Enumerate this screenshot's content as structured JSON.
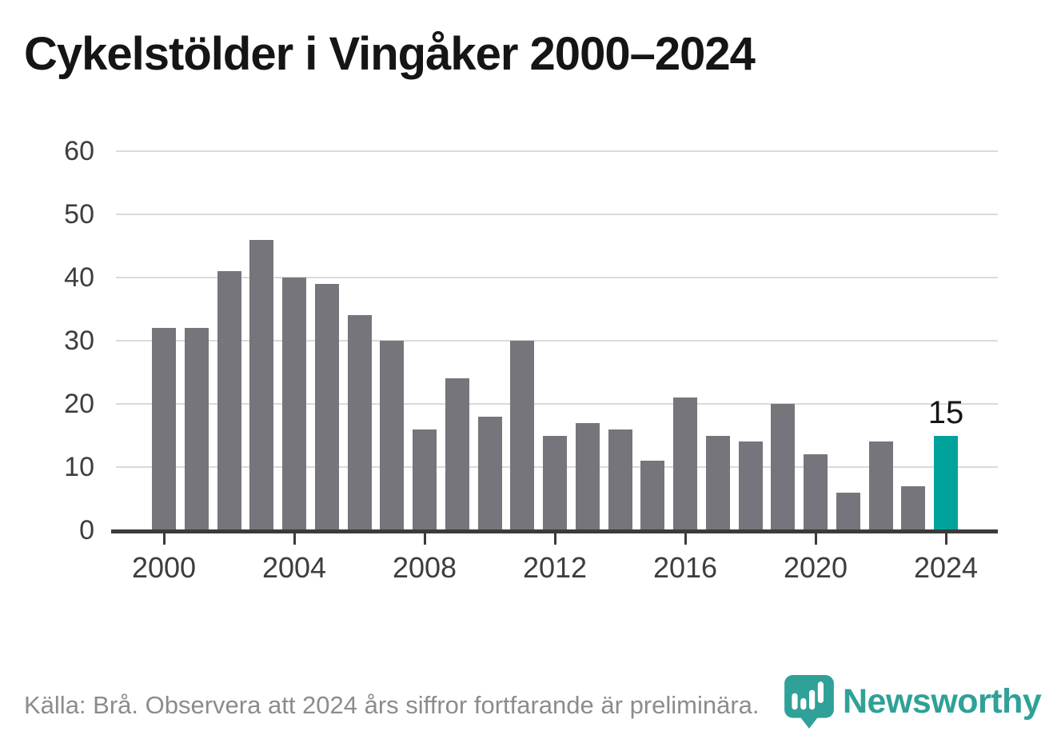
{
  "title": "Cykelstölder i Vingåker 2000–2024",
  "footer": {
    "source_note": "Källa: Brå. Observera att 2024 års siffror fortfarande är preliminära.",
    "brand": "Newsworthy"
  },
  "colors": {
    "bar": "#76757b",
    "highlight": "#00a39c",
    "gridline": "#dadada",
    "axis": "#3b3b3b",
    "tick_label": "#3d3d3d",
    "value_label": "#151515",
    "title_text": "#151515",
    "footer_text": "#8c8c8c",
    "brand_teal": "#2fa198"
  },
  "chart_data": {
    "type": "bar",
    "title": "Cykelstölder i Vingåker 2000–2024",
    "xlabel": "",
    "ylabel": "",
    "categories": [
      2000,
      2001,
      2002,
      2003,
      2004,
      2005,
      2006,
      2007,
      2008,
      2009,
      2010,
      2011,
      2012,
      2013,
      2014,
      2015,
      2016,
      2017,
      2018,
      2019,
      2020,
      2021,
      2022,
      2023,
      2024
    ],
    "values": [
      32,
      32,
      41,
      46,
      40,
      39,
      34,
      30,
      16,
      24,
      18,
      30,
      15,
      17,
      16,
      11,
      21,
      15,
      14,
      20,
      12,
      6,
      14,
      7,
      15
    ],
    "highlight_category": 2024,
    "highlight_value_label": "15",
    "ylim": [
      0,
      60
    ],
    "y_ticks": [
      0,
      10,
      20,
      30,
      40,
      50,
      60
    ],
    "x_ticks": [
      2000,
      2004,
      2008,
      2012,
      2016,
      2020,
      2024
    ],
    "grid": "horizontal",
    "legend": "none"
  }
}
